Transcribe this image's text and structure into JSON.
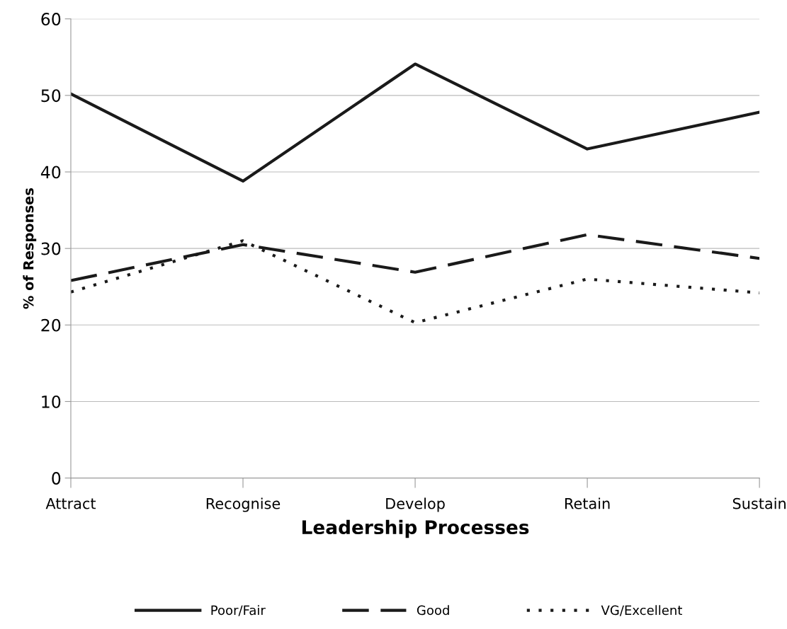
{
  "chart_data": {
    "type": "line",
    "xlabel": "Leadership Processes",
    "ylabel": "% of Responses",
    "categories": [
      "Attract",
      "Recognise",
      "Develop",
      "Retain",
      "Sustain"
    ],
    "ylim": [
      0,
      60
    ],
    "yticks": [
      0,
      10,
      20,
      30,
      40,
      50,
      60
    ],
    "grid": "y",
    "legend": "bottom",
    "series": [
      {
        "name": "Poor/Fair",
        "color": "#1a1a1a",
        "line_style": "solid",
        "values": [
          50.2,
          38.8,
          54.1,
          43.0,
          47.8
        ]
      },
      {
        "name": "Good",
        "color": "#1a1a1a",
        "line_style": "dashed",
        "values": [
          25.8,
          30.5,
          26.9,
          31.8,
          28.7
        ]
      },
      {
        "name": "VG/Excellent",
        "color": "#1a1a1a",
        "line_style": "dotted",
        "values": [
          24.3,
          31.0,
          20.3,
          26.0,
          24.2
        ]
      }
    ]
  }
}
